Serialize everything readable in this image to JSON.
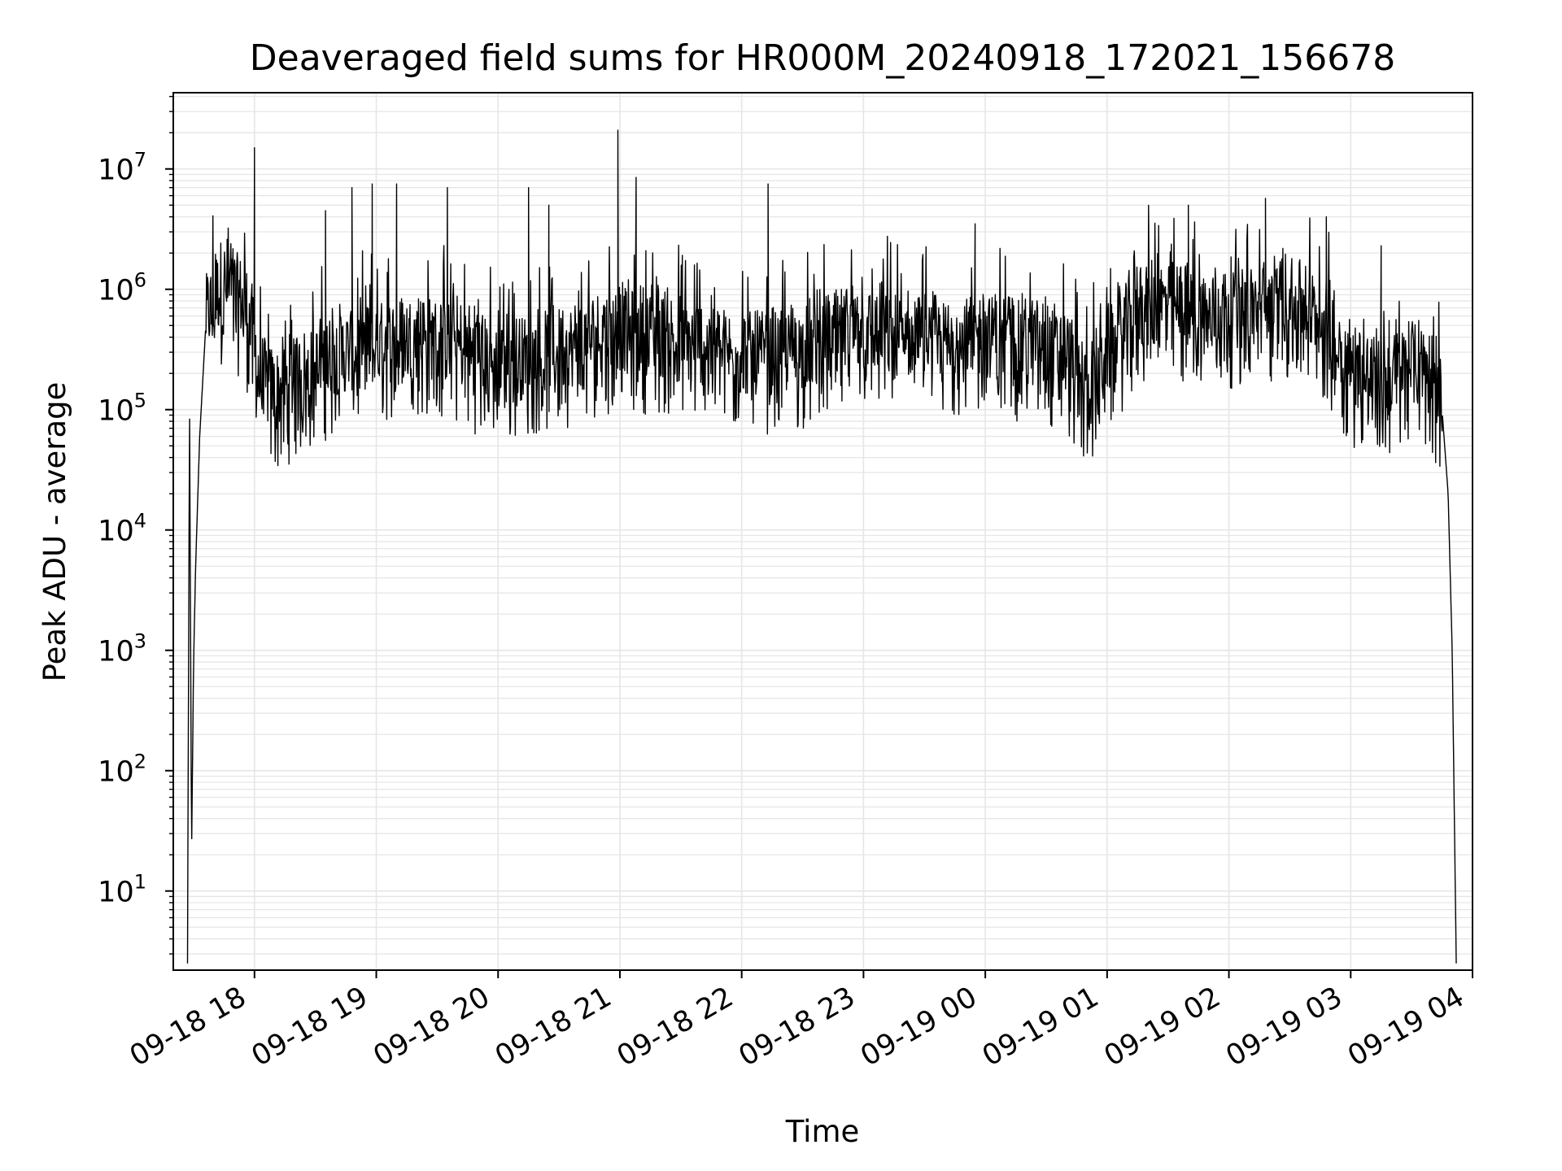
{
  "chart_data": {
    "type": "line",
    "title": "Deaveraged field sums for HR000M_20240918_172021_156678",
    "xlabel": "Time",
    "ylabel": "Peak ADU - average",
    "yscale": "log",
    "ylim": [
      2.2,
      43000000
    ],
    "xlim": [
      "2024-09-18 17:20",
      "2024-09-19 04:00"
    ],
    "x_tick_labels": [
      "09-18 18",
      "09-18 19",
      "09-18 20",
      "09-18 21",
      "09-18 22",
      "09-18 23",
      "09-19 00",
      "09-19 01",
      "09-19 02",
      "09-19 03",
      "09-19 04"
    ],
    "y_tick_labels": [
      {
        "value": 10,
        "base": "10",
        "exp": "1"
      },
      {
        "value": 100,
        "base": "10",
        "exp": "2"
      },
      {
        "value": 1000,
        "base": "10",
        "exp": "3"
      },
      {
        "value": 10000,
        "base": "10",
        "exp": "4"
      },
      {
        "value": 100000,
        "base": "10",
        "exp": "5"
      },
      {
        "value": 1000000,
        "base": "10",
        "exp": "6"
      },
      {
        "value": 10000000,
        "base": "10",
        "exp": "7"
      }
    ],
    "grid": true,
    "line_color": "#000000",
    "grid_color": "#e6e6e6",
    "series": [
      {
        "x": [
          "2024-09-18 17:27",
          "2024-09-18 17:28",
          "2024-09-18 17:29",
          "2024-09-18 17:30",
          "2024-09-18 17:31",
          "2024-09-18 17:33",
          "2024-09-18 17:36",
          "2024-09-18 17:40",
          "2024-09-18 17:45",
          "2024-09-18 17:50",
          "2024-09-18 17:55",
          "2024-09-18 18:00",
          "2024-09-18 18:03",
          "2024-09-18 18:10",
          "2024-09-18 18:20",
          "2024-09-18 18:40",
          "2024-09-18 19:00",
          "2024-09-18 19:20",
          "2024-09-18 19:40",
          "2024-09-18 20:00",
          "2024-09-18 20:20",
          "2024-09-18 20:40",
          "2024-09-18 21:00",
          "2024-09-18 21:20",
          "2024-09-18 21:40",
          "2024-09-18 22:00",
          "2024-09-18 22:20",
          "2024-09-18 22:40",
          "2024-09-18 23:00",
          "2024-09-18 23:20",
          "2024-09-18 23:40",
          "2024-09-19 00:00",
          "2024-09-19 00:20",
          "2024-09-19 00:40",
          "2024-09-19 00:50",
          "2024-09-19 01:00",
          "2024-09-19 01:15",
          "2024-09-19 01:30",
          "2024-09-19 01:45",
          "2024-09-19 02:00",
          "2024-09-19 02:15",
          "2024-09-19 02:30",
          "2024-09-19 02:45",
          "2024-09-19 03:00",
          "2024-09-19 03:15",
          "2024-09-19 03:30",
          "2024-09-19 03:40",
          "2024-09-19 03:45",
          "2024-09-19 03:48",
          "2024-09-19 03:50",
          "2024-09-19 03:52"
        ],
        "y": [
          2.5,
          120000,
          20,
          800,
          5000,
          60000,
          500000,
          700000,
          1000000,
          800000,
          700000,
          300000,
          150000,
          120000,
          150000,
          250000,
          300000,
          350000,
          300000,
          200000,
          250000,
          300000,
          400000,
          350000,
          300000,
          250000,
          250000,
          300000,
          400000,
          350000,
          300000,
          350000,
          300000,
          250000,
          120000,
          250000,
          600000,
          700000,
          500000,
          600000,
          600000,
          700000,
          500000,
          200000,
          150000,
          200000,
          180000,
          100000,
          20000,
          1000,
          2.5
        ],
        "spikes": [
          {
            "x": "2024-09-18 18:00",
            "y": 15000000
          },
          {
            "x": "2024-09-18 18:35",
            "y": 4500000
          },
          {
            "x": "2024-09-18 18:48",
            "y": 7000000
          },
          {
            "x": "2024-09-18 18:58",
            "y": 7500000
          },
          {
            "x": "2024-09-18 19:10",
            "y": 7500000
          },
          {
            "x": "2024-09-18 19:35",
            "y": 7000000
          },
          {
            "x": "2024-09-18 20:15",
            "y": 7000000
          },
          {
            "x": "2024-09-18 20:25",
            "y": 5000000
          },
          {
            "x": "2024-09-18 20:59",
            "y": 21000000
          },
          {
            "x": "2024-09-18 21:08",
            "y": 8500000
          },
          {
            "x": "2024-09-18 22:13",
            "y": 7500000
          },
          {
            "x": "2024-09-18 23:55",
            "y": 3500000
          },
          {
            "x": "2024-09-19 01:40",
            "y": 5000000
          },
          {
            "x": "2024-09-19 02:18",
            "y": 5700000
          },
          {
            "x": "2024-09-19 02:48",
            "y": 4000000
          },
          {
            "x": "2024-09-19 03:15",
            "y": 2300000
          }
        ]
      }
    ]
  }
}
